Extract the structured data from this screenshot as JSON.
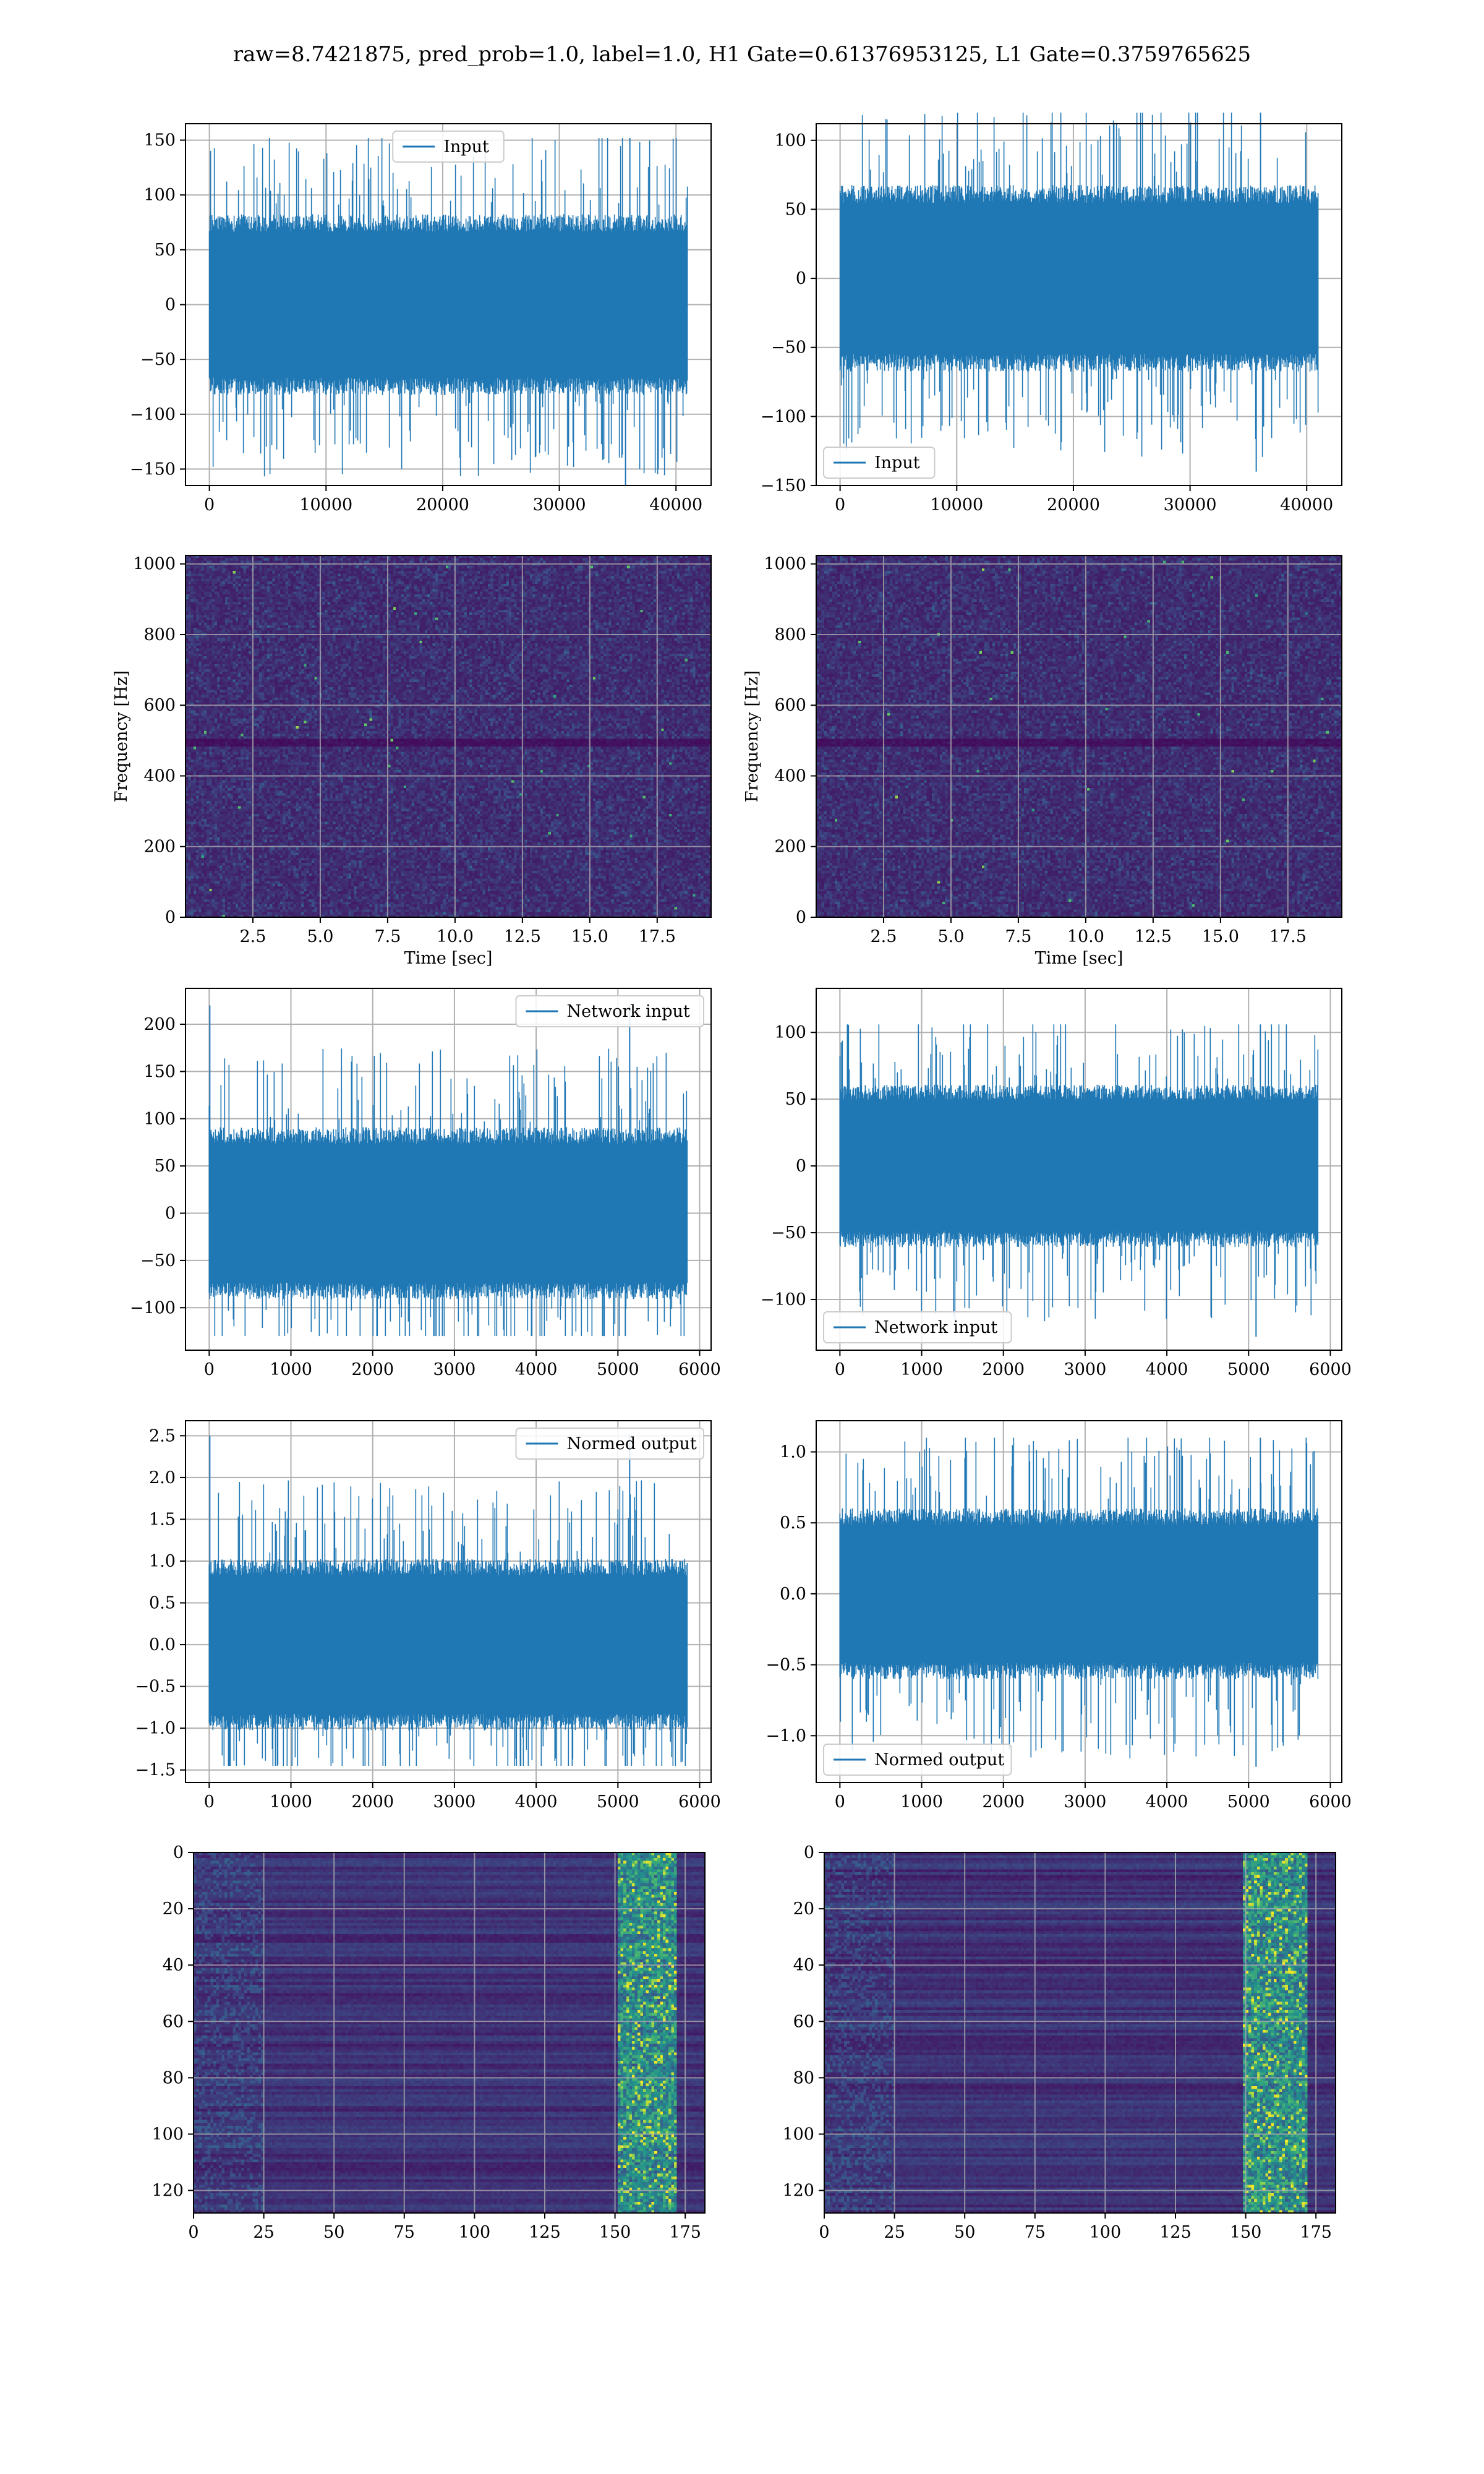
{
  "figure": {
    "title": "raw=8.7421875, pred_prob=1.0, label=1.0, H1 Gate=0.61376953125, L1 Gate=0.3759765625"
  },
  "colors": {
    "line": "#1f77b4",
    "grid": "#b0b0b0",
    "spine": "#000000"
  },
  "chart_data": [
    {
      "id": "h1-input",
      "type": "line",
      "series": [
        {
          "name": "Input",
          "n_points": 40960,
          "y_envelope": [
            -165,
            152
          ]
        }
      ],
      "xlim": [
        -2048,
        43008
      ],
      "ylim": [
        -165,
        165
      ],
      "xticks": [
        0,
        10000,
        20000,
        30000,
        40000
      ],
      "yticks": [
        -150,
        -100,
        -50,
        0,
        50,
        100,
        150
      ],
      "grid": true,
      "legend": "upper center",
      "xlabel": "",
      "ylabel": ""
    },
    {
      "id": "l1-input",
      "type": "line",
      "series": [
        {
          "name": "Input",
          "n_points": 40960,
          "y_envelope": [
            -140,
            120
          ]
        }
      ],
      "xlim": [
        -2048,
        43008
      ],
      "ylim": [
        -150,
        112
      ],
      "xticks": [
        0,
        10000,
        20000,
        30000,
        40000
      ],
      "yticks": [
        -150,
        -100,
        -50,
        0,
        50,
        100
      ],
      "grid": true,
      "legend": "lower left",
      "xlabel": "",
      "ylabel": ""
    },
    {
      "id": "h1-spectrogram",
      "type": "heatmap",
      "colormap": "viridis",
      "xlim": [
        0,
        19.5
      ],
      "ylim": [
        0,
        1024
      ],
      "xticks": [
        2.5,
        5.0,
        7.5,
        10.0,
        12.5,
        15.0,
        17.5
      ],
      "yticks": [
        0,
        200,
        400,
        600,
        800,
        1000
      ],
      "xlabel": "Time [sec]",
      "ylabel": "Frequency [Hz]",
      "grid": true
    },
    {
      "id": "l1-spectrogram",
      "type": "heatmap",
      "colormap": "viridis",
      "xlim": [
        0,
        19.5
      ],
      "ylim": [
        0,
        1024
      ],
      "xticks": [
        2.5,
        5.0,
        7.5,
        10.0,
        12.5,
        15.0,
        17.5
      ],
      "yticks": [
        0,
        200,
        400,
        600,
        800,
        1000
      ],
      "xlabel": "Time [sec]",
      "ylabel": "Frequency [Hz]",
      "grid": true
    },
    {
      "id": "h1-network-input",
      "type": "line",
      "series": [
        {
          "name": "Network input",
          "n_points": 5850,
          "y_envelope": [
            -130,
            220
          ]
        }
      ],
      "xlim": [
        -290,
        6140
      ],
      "ylim": [
        -145,
        238
      ],
      "xticks": [
        0,
        1000,
        2000,
        3000,
        4000,
        5000,
        6000
      ],
      "yticks": [
        -100,
        -50,
        0,
        50,
        100,
        150,
        200
      ],
      "grid": true,
      "legend": "upper right",
      "xlabel": "",
      "ylabel": ""
    },
    {
      "id": "l1-network-input",
      "type": "line",
      "series": [
        {
          "name": "Network input",
          "n_points": 5850,
          "y_envelope": [
            -128,
            106
          ]
        }
      ],
      "xlim": [
        -290,
        6140
      ],
      "ylim": [
        -138,
        133
      ],
      "xticks": [
        0,
        1000,
        2000,
        3000,
        4000,
        5000,
        6000
      ],
      "yticks": [
        -100,
        -50,
        0,
        50,
        100
      ],
      "grid": true,
      "legend": "lower left",
      "xlabel": "",
      "ylabel": ""
    },
    {
      "id": "h1-normed-output",
      "type": "line",
      "series": [
        {
          "name": "Normed output",
          "n_points": 5850,
          "y_envelope": [
            -1.45,
            2.5
          ]
        }
      ],
      "xlim": [
        -290,
        6140
      ],
      "ylim": [
        -1.65,
        2.68
      ],
      "xticks": [
        0,
        1000,
        2000,
        3000,
        4000,
        5000,
        6000
      ],
      "yticks": [
        -1.5,
        -1.0,
        -0.5,
        0.0,
        0.5,
        1.0,
        1.5,
        2.0,
        2.5
      ],
      "grid": true,
      "legend": "upper right",
      "xlabel": "",
      "ylabel": ""
    },
    {
      "id": "l1-normed-output",
      "type": "line",
      "series": [
        {
          "name": "Normed output",
          "n_points": 5850,
          "y_envelope": [
            -1.22,
            1.1
          ]
        }
      ],
      "xlim": [
        -290,
        6140
      ],
      "ylim": [
        -1.33,
        1.22
      ],
      "xticks": [
        0,
        1000,
        2000,
        3000,
        4000,
        5000,
        6000
      ],
      "yticks": [
        -1.0,
        -0.5,
        0.0,
        0.5,
        1.0
      ],
      "grid": true,
      "legend": "lower left",
      "xlabel": "",
      "ylabel": ""
    },
    {
      "id": "h1-feature-map",
      "type": "heatmap",
      "colormap": "viridis",
      "xlim": [
        0,
        182
      ],
      "ylim": [
        128,
        0
      ],
      "xticks": [
        0,
        25,
        50,
        75,
        100,
        125,
        150,
        175
      ],
      "yticks": [
        0,
        20,
        40,
        60,
        80,
        100,
        120
      ],
      "bright_band_x": [
        150,
        172
      ],
      "grid": true,
      "xlabel": "",
      "ylabel": ""
    },
    {
      "id": "l1-feature-map",
      "type": "heatmap",
      "colormap": "viridis",
      "xlim": [
        0,
        182
      ],
      "ylim": [
        128,
        0
      ],
      "xticks": [
        0,
        25,
        50,
        75,
        100,
        125,
        150,
        175
      ],
      "yticks": [
        0,
        20,
        40,
        60,
        80,
        100,
        120
      ],
      "bright_band_x": [
        148,
        172
      ],
      "grid": true,
      "xlabel": "",
      "ylabel": ""
    }
  ]
}
